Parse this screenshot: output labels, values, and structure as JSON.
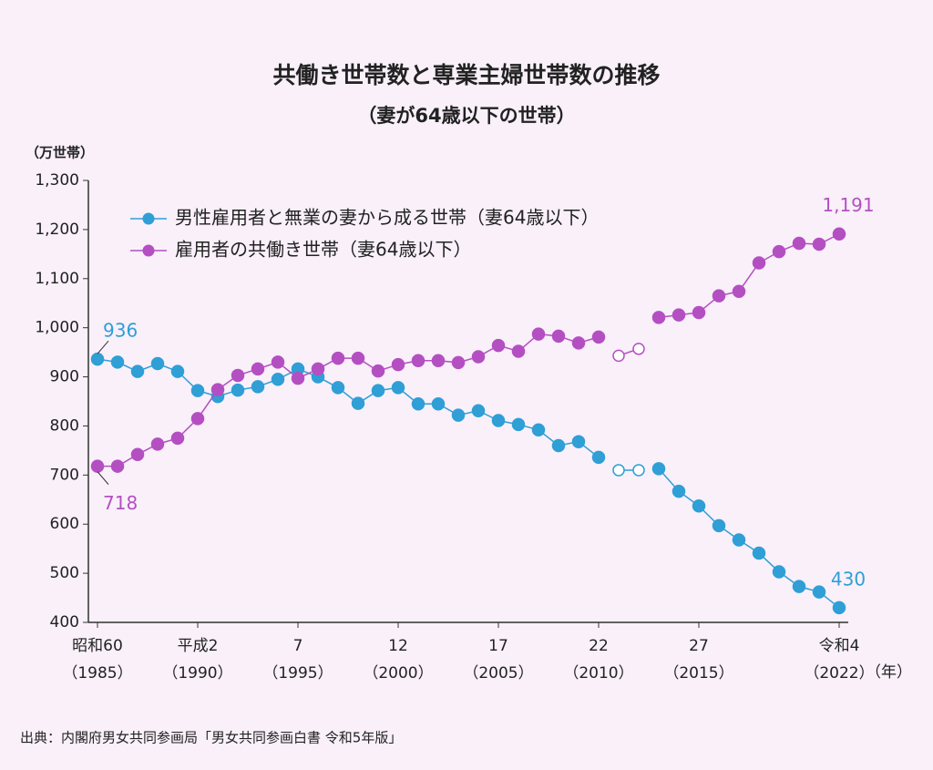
{
  "chart_data": {
    "type": "line",
    "title": "共働き世帯数と専業主婦世帯数の推移",
    "subtitle": "（妻が64歳以下の世帯）",
    "y_axis_label": "（万世帯）",
    "x_axis_label": "（年）",
    "source": "出典：内閣府男女共同参画局「男女共同参画白書 令和5年版」",
    "x": [
      1985,
      1986,
      1987,
      1988,
      1989,
      1990,
      1991,
      1992,
      1993,
      1994,
      1995,
      1996,
      1997,
      1998,
      1999,
      2000,
      2001,
      2002,
      2003,
      2004,
      2005,
      2006,
      2007,
      2008,
      2009,
      2010,
      2011,
      2012,
      2013,
      2014,
      2015,
      2016,
      2017,
      2018,
      2019,
      2020,
      2021,
      2022
    ],
    "series": [
      {
        "name": "男性雇用者と無業の妻から成る世帯（妻64歳以下）",
        "color": "#2f9fd6",
        "values": [
          936,
          930,
          911,
          927,
          911,
          872,
          860,
          873,
          880,
          895,
          916,
          900,
          878,
          846,
          872,
          878,
          845,
          845,
          822,
          831,
          811,
          803,
          792,
          760,
          768,
          736,
          null,
          null,
          713,
          667,
          637,
          597,
          568,
          541,
          503,
          473,
          462,
          430
        ],
        "estimated_values": [
          null,
          null,
          null,
          null,
          null,
          null,
          null,
          null,
          null,
          null,
          null,
          null,
          null,
          null,
          null,
          null,
          null,
          null,
          null,
          null,
          null,
          null,
          null,
          null,
          null,
          null,
          710,
          710,
          null,
          null,
          null,
          null,
          null,
          null,
          null,
          null,
          null,
          null
        ],
        "value_labels": [
          "936",
          null,
          null,
          null,
          null,
          null,
          null,
          null,
          null,
          null,
          null,
          null,
          null,
          null,
          null,
          null,
          null,
          null,
          null,
          null,
          null,
          null,
          null,
          null,
          null,
          null,
          null,
          null,
          null,
          null,
          null,
          null,
          null,
          null,
          null,
          null,
          null,
          "430"
        ]
      },
      {
        "name": "雇用者の共働き世帯（妻64歳以下）",
        "color": "#b44fc2",
        "values": [
          718,
          718,
          742,
          763,
          775,
          815,
          874,
          903,
          916,
          930,
          897,
          916,
          938,
          938,
          912,
          925,
          933,
          933,
          929,
          941,
          964,
          952,
          987,
          983,
          969,
          981,
          null,
          null,
          1021,
          1026,
          1031,
          1065,
          1074,
          1132,
          1155,
          1172,
          1170,
          1191
        ],
        "estimated_values": [
          null,
          null,
          null,
          null,
          null,
          null,
          null,
          null,
          null,
          null,
          null,
          null,
          null,
          null,
          null,
          null,
          null,
          null,
          null,
          null,
          null,
          null,
          null,
          null,
          null,
          null,
          943,
          957,
          null,
          null,
          null,
          null,
          null,
          null,
          null,
          null,
          null,
          null
        ],
        "value_labels": [
          "718",
          null,
          null,
          null,
          null,
          null,
          null,
          null,
          null,
          null,
          null,
          null,
          null,
          null,
          null,
          null,
          null,
          null,
          null,
          null,
          null,
          null,
          null,
          null,
          null,
          null,
          null,
          null,
          null,
          null,
          null,
          null,
          null,
          null,
          null,
          null,
          null,
          "1,191"
        ]
      }
    ],
    "xticks": [
      {
        "value": 1985,
        "label": "昭和60",
        "sublabel": "（1985）"
      },
      {
        "value": 1990,
        "label": "平成2",
        "sublabel": "（1990）"
      },
      {
        "value": 1995,
        "label": "7",
        "sublabel": "（1995）"
      },
      {
        "value": 2000,
        "label": "12",
        "sublabel": "（2000）"
      },
      {
        "value": 2005,
        "label": "17",
        "sublabel": "（2005）"
      },
      {
        "value": 2010,
        "label": "22",
        "sublabel": "（2010）"
      },
      {
        "value": 2015,
        "label": "27",
        "sublabel": "（2015）"
      },
      {
        "value": 2022,
        "label": "令和4",
        "sublabel": "（2022）"
      }
    ],
    "xlim": [
      1985,
      2022
    ],
    "ylim": [
      400,
      1300
    ],
    "yticks": [
      400,
      500,
      600,
      700,
      800,
      900,
      {
        "value": 1000,
        "label": "1,000"
      },
      {
        "value": 1100,
        "label": "1,100"
      },
      {
        "value": 1200,
        "label": "1,200"
      },
      {
        "value": 1300,
        "label": "1,300"
      }
    ],
    "legend": "upper left"
  }
}
